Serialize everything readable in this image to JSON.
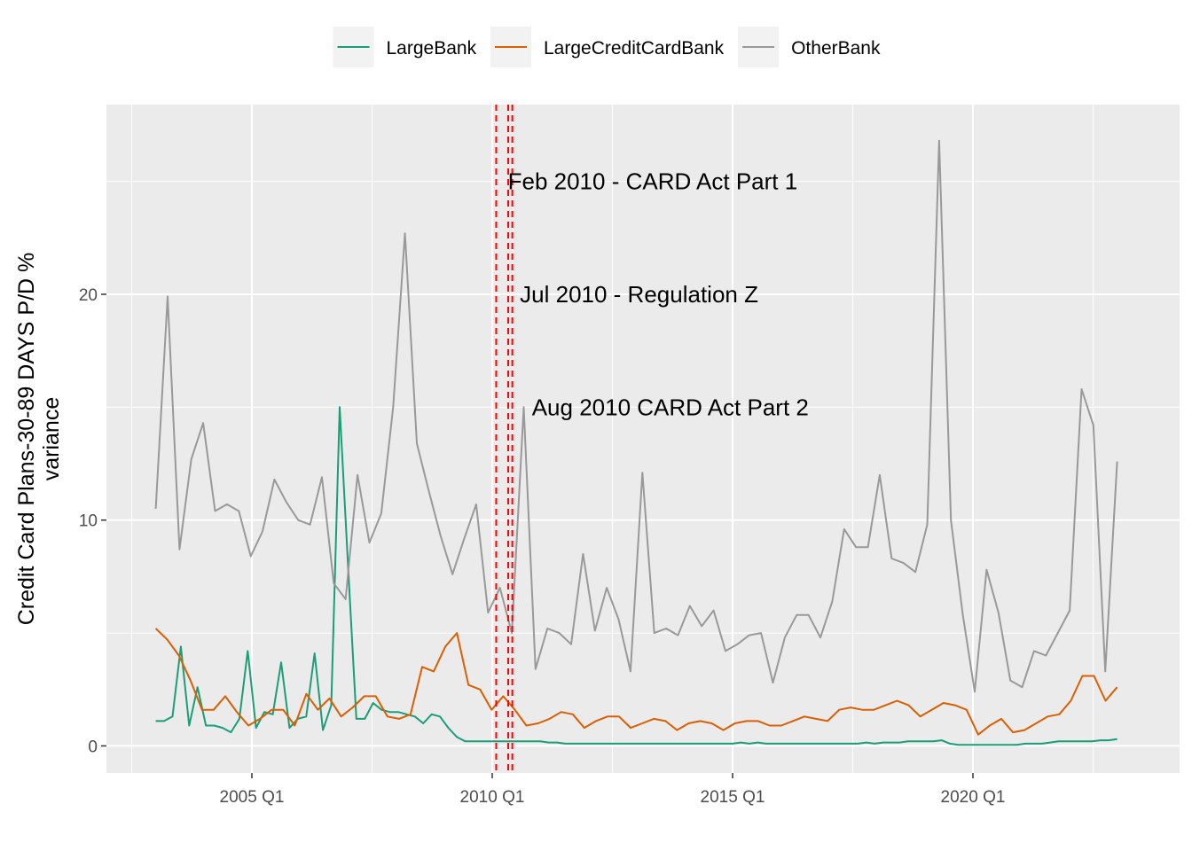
{
  "chart_data": {
    "type": "line",
    "title": "",
    "xlabel": "",
    "ylabel_lines": [
      "Credit Card Plans-30-89 DAYS P/D %",
      "variance"
    ],
    "x_ticks": [
      "2005 Q1",
      "2010 Q1",
      "2015 Q1",
      "2020 Q1"
    ],
    "y_ticks": [
      "0",
      "10",
      "20"
    ],
    "ylim": [
      -1.2,
      28.4
    ],
    "grid": true,
    "legend_position": "top",
    "x_start": "2003 Q1",
    "series": [
      {
        "name": "LargeBank",
        "color": "#1B9E77",
        "values": [
          1.1,
          1.1,
          1.3,
          4.4,
          0.9,
          2.6,
          0.9,
          0.9,
          0.8,
          0.6,
          1.2,
          4.2,
          0.8,
          1.5,
          1.4,
          3.7,
          0.8,
          1.2,
          1.3,
          4.1,
          0.7,
          1.8,
          15.0,
          8.0,
          1.2,
          1.2,
          1.9,
          1.6,
          1.5,
          1.5,
          1.4,
          1.3,
          1.0,
          1.4,
          1.3,
          0.8,
          0.4,
          0.2,
          0.2,
          0.2,
          0.2,
          0.2,
          0.2,
          0.2,
          0.2,
          0.2,
          0.2,
          0.15,
          0.15,
          0.1,
          0.1,
          0.1,
          0.1,
          0.1,
          0.1,
          0.1,
          0.1,
          0.1,
          0.1,
          0.1,
          0.1,
          0.1,
          0.1,
          0.1,
          0.1,
          0.1,
          0.1,
          0.1,
          0.1,
          0.1,
          0.15,
          0.1,
          0.15,
          0.1,
          0.1,
          0.1,
          0.1,
          0.1,
          0.1,
          0.1,
          0.1,
          0.1,
          0.1,
          0.1,
          0.1,
          0.15,
          0.1,
          0.15,
          0.15,
          0.15,
          0.2,
          0.2,
          0.2,
          0.2,
          0.25,
          0.1,
          0.05,
          0.05,
          0.05,
          0.05,
          0.05,
          0.05,
          0.05,
          0.05,
          0.1,
          0.1,
          0.1,
          0.15,
          0.2,
          0.2,
          0.2,
          0.2,
          0.2,
          0.25,
          0.25,
          0.3
        ]
      },
      {
        "name": "LargeCreditCardBank",
        "color": "#D95F02",
        "values": [
          5.2,
          4.7,
          4.0,
          2.9,
          1.6,
          1.6,
          2.2,
          1.5,
          0.9,
          1.2,
          1.6,
          1.6,
          0.9,
          2.3,
          1.6,
          2.1,
          1.3,
          1.7,
          2.2,
          2.2,
          1.3,
          1.2,
          1.4,
          3.5,
          3.3,
          4.4,
          5.0,
          2.7,
          2.5,
          1.6,
          2.2,
          1.6,
          0.9,
          1.0,
          1.2,
          1.5,
          1.4,
          0.8,
          1.1,
          1.3,
          1.3,
          0.8,
          1.0,
          1.2,
          1.1,
          0.7,
          1.0,
          1.1,
          1.0,
          0.7,
          1.0,
          1.1,
          1.1,
          0.9,
          0.9,
          1.1,
          1.3,
          1.2,
          1.1,
          1.6,
          1.7,
          1.6,
          1.6,
          1.8,
          2.0,
          1.8,
          1.3,
          1.6,
          1.9,
          1.8,
          1.6,
          0.5,
          0.9,
          1.2,
          0.6,
          0.7,
          1.0,
          1.3,
          1.4,
          2.0,
          3.1,
          3.1,
          2.0,
          2.6
        ]
      },
      {
        "name": "OtherBank",
        "color": "#999999",
        "values": [
          10.5,
          19.9,
          8.7,
          12.7,
          14.3,
          10.4,
          10.7,
          10.4,
          8.4,
          9.5,
          11.8,
          10.8,
          10.0,
          9.8,
          11.9,
          7.2,
          6.5,
          12.0,
          9.0,
          10.3,
          15.0,
          22.7,
          13.4,
          11.3,
          9.3,
          7.6,
          9.2,
          10.7,
          5.9,
          7.0,
          5.0,
          15.0,
          3.4,
          5.2,
          5.0,
          4.5,
          8.5,
          5.1,
          7.0,
          5.6,
          3.3,
          12.1,
          5.0,
          5.2,
          4.9,
          6.2,
          5.3,
          6.0,
          4.2,
          4.5,
          4.9,
          5.0,
          2.8,
          4.8,
          5.8,
          5.8,
          4.8,
          6.4,
          9.6,
          8.8,
          8.8,
          12.0,
          8.3,
          8.1,
          7.7,
          9.8,
          26.8,
          10.0,
          5.8,
          2.4,
          7.8,
          5.9,
          2.9,
          2.6,
          4.2,
          4.0,
          5.0,
          6.0,
          15.8,
          14.2,
          3.3,
          12.6
        ]
      }
    ],
    "vlines": [
      {
        "x": "2010 Q1",
        "offset_quarters": 0.33,
        "color": "#FF0000"
      },
      {
        "x": "2010 Q3",
        "offset_quarters": -0.67,
        "color": "#FF0000"
      },
      {
        "x": "2010 Q3",
        "offset_quarters": -0.33,
        "color": "#FF0000"
      }
    ],
    "annotations": [
      {
        "text": "Feb 2010 - CARD Act Part 1",
        "x": "2010 Q1",
        "x_offset_quarters": 1.3,
        "y": 25
      },
      {
        "text": "Jul 2010 - Regulation Z",
        "x": "2010 Q3",
        "x_offset_quarters": 0.3,
        "y": 20
      },
      {
        "text": "Aug 2010 CARD Act Part 2",
        "x": "2010 Q3",
        "x_offset_quarters": 1.3,
        "y": 15
      }
    ]
  }
}
